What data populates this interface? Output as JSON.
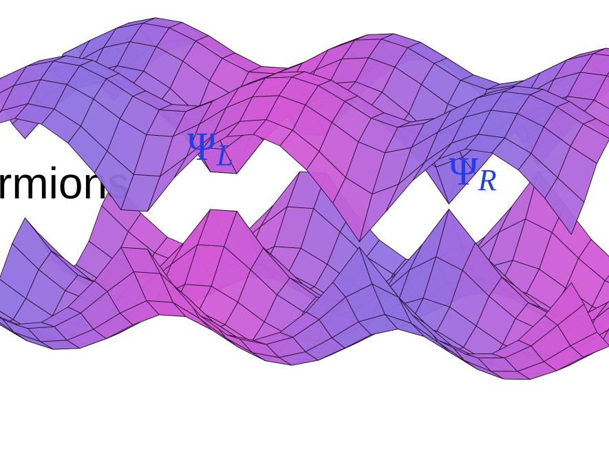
{
  "caption": "rmions",
  "labels": [
    {
      "symbol": "Ψ",
      "subscript": "L"
    },
    {
      "symbol": "Ψ",
      "subscript": "R"
    }
  ]
}
